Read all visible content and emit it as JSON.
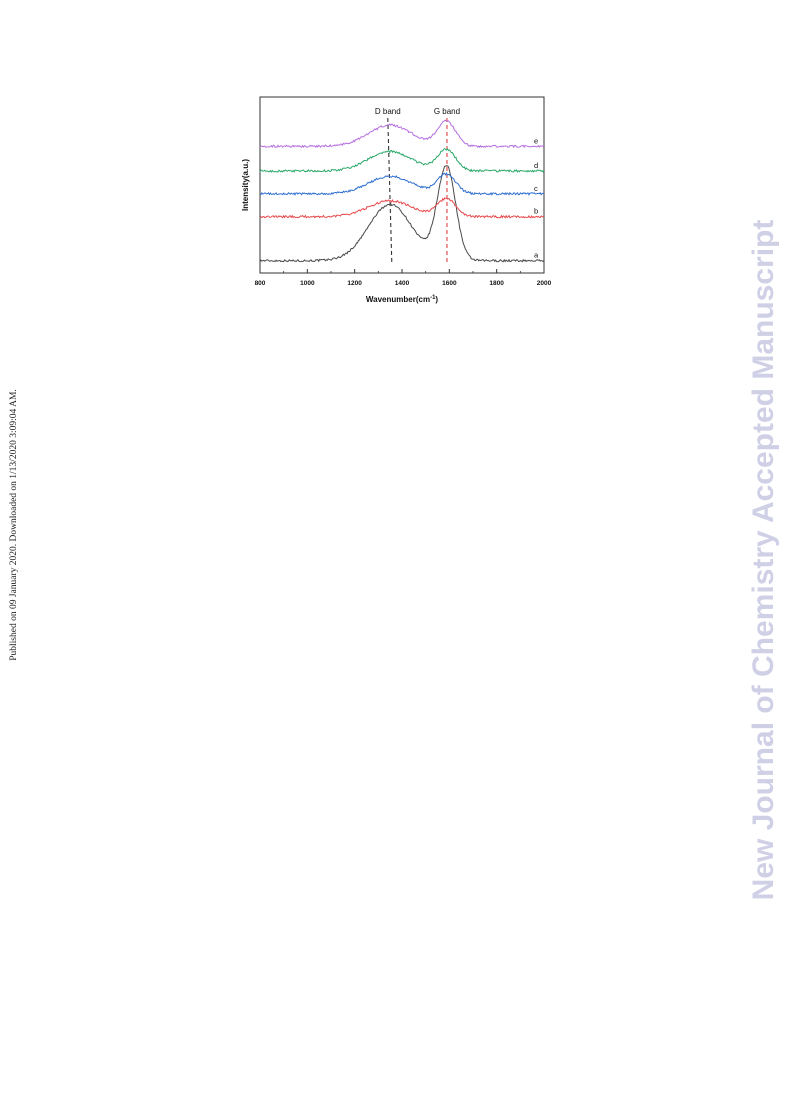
{
  "page": {
    "watermark": "New Journal of Chemistry Accepted Manuscript",
    "published_note": "Published on 09 January 2020. Downloaded on 1/13/2020 3:09:04 AM."
  },
  "chart_data": {
    "type": "line",
    "xlabel": "Wavenumber(cm",
    "xlabel_sup": "-1",
    "xlabel_close": ")",
    "ylabel": "Intensity(a.u.)",
    "xlim": [
      800,
      2000
    ],
    "xticks": [
      800,
      1000,
      1200,
      1400,
      1600,
      1800,
      2000
    ],
    "grid": false,
    "legend": "none",
    "annotations": [
      {
        "label": "D band",
        "x": 1340,
        "color": "#333333"
      },
      {
        "label": "G band",
        "x": 1590,
        "color": "#e04040"
      }
    ],
    "series": [
      {
        "label": "a",
        "color": "#4a4a4a",
        "d_height": 0.32,
        "g_height": 0.53,
        "baseline": 0.07
      },
      {
        "label": "b",
        "color": "#e8474a",
        "d_height": 0.09,
        "g_height": 0.1,
        "baseline": 0.32
      },
      {
        "label": "c",
        "color": "#2f6fd0",
        "d_height": 0.1,
        "g_height": 0.11,
        "baseline": 0.45
      },
      {
        "label": "d",
        "color": "#2aa86a",
        "d_height": 0.11,
        "g_height": 0.12,
        "baseline": 0.58
      },
      {
        "label": "e",
        "color": "#b56fe0",
        "d_height": 0.12,
        "g_height": 0.14,
        "baseline": 0.72
      }
    ]
  }
}
